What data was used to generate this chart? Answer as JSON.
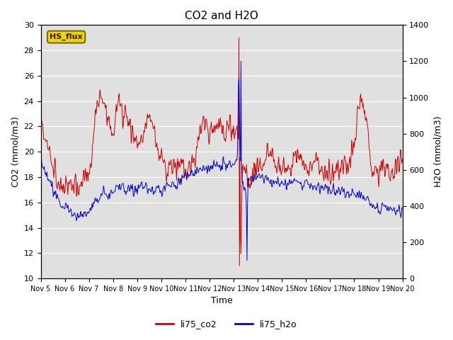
{
  "title": "CO2 and H2O",
  "xlabel": "Time",
  "ylabel_left": "CO2 (mmol/m3)",
  "ylabel_right": "H2O (mmol/m3)",
  "x_tick_labels": [
    "Nov 5",
    "Nov 6",
    "Nov 7",
    "Nov 8",
    "Nov 9",
    "Nov 10",
    "Nov 11",
    "Nov 12",
    "Nov 13",
    "Nov 14",
    "Nov 15",
    "Nov 16",
    "Nov 17",
    "Nov 18",
    "Nov 19",
    "Nov 20"
  ],
  "ylim_left": [
    10,
    30
  ],
  "ylim_right": [
    0,
    1400
  ],
  "yticks_left": [
    10,
    12,
    14,
    16,
    18,
    20,
    22,
    24,
    26,
    28,
    30
  ],
  "yticks_right": [
    0,
    200,
    400,
    600,
    800,
    1000,
    1200,
    1400
  ],
  "co2_color": "#cc0000",
  "h2o_color": "#0000cc",
  "background_color": "#e0e0e0",
  "legend_label_co2": "li75_co2",
  "legend_label_h2o": "li75_h2o",
  "annotation_text": "HS_flux",
  "annotation_bg": "#dddd00",
  "annotation_border": "#886600",
  "linewidth": 0.7,
  "co2_waypoints_t": [
    0,
    0.05,
    0.15,
    0.25,
    0.4,
    0.6,
    0.8,
    1.0,
    1.1,
    1.2,
    1.4,
    1.6,
    1.8,
    2.0,
    2.1,
    2.2,
    2.35,
    2.5,
    2.65,
    2.8,
    3.0,
    3.1,
    3.2,
    3.35,
    3.5,
    3.65,
    3.8,
    4.0,
    4.2,
    4.4,
    4.6,
    4.8,
    5.0,
    5.2,
    5.4,
    5.6,
    5.8,
    6.0,
    6.2,
    6.4,
    6.6,
    6.8,
    7.0,
    7.2,
    7.4,
    7.6,
    7.8,
    8.0,
    8.1,
    8.15,
    8.18,
    8.22,
    8.28,
    8.35,
    8.45,
    8.6,
    8.8,
    9.0,
    9.2,
    9.4,
    9.6,
    9.8,
    10.0,
    10.2,
    10.4,
    10.6,
    10.8,
    11.0,
    11.2,
    11.4,
    11.6,
    11.8,
    12.0,
    12.2,
    12.4,
    12.6,
    12.8,
    13.0,
    13.15,
    13.3,
    13.5,
    13.7,
    13.9,
    14.1,
    14.3,
    14.5,
    14.7,
    14.9,
    15.0
  ],
  "co2_waypoints_v": [
    22.2,
    22.5,
    21.5,
    20.5,
    19.5,
    18.5,
    17.2,
    17.0,
    17.0,
    17.5,
    17.5,
    17.0,
    18.0,
    18.5,
    19.5,
    21.5,
    23.5,
    24.3,
    23.8,
    22.5,
    21.5,
    23.0,
    24.0,
    23.5,
    23.0,
    22.5,
    21.5,
    20.5,
    21.0,
    22.5,
    22.5,
    20.5,
    19.5,
    18.5,
    19.0,
    18.5,
    19.5,
    18.0,
    19.0,
    19.5,
    22.0,
    22.5,
    21.5,
    22.0,
    22.0,
    21.5,
    22.0,
    21.5,
    22.0,
    22.5,
    21.5,
    29.0,
    11.0,
    18.5,
    18.5,
    17.5,
    18.5,
    18.5,
    19.0,
    20.0,
    19.5,
    19.0,
    18.5,
    18.5,
    19.0,
    20.0,
    19.5,
    19.0,
    18.5,
    19.5,
    18.5,
    18.5,
    18.0,
    18.5,
    18.5,
    19.5,
    19.0,
    20.5,
    23.5,
    24.0,
    22.5,
    18.5,
    18.5,
    18.5,
    19.0,
    18.5,
    18.5,
    19.5,
    19.0
  ],
  "h2o_waypoints_t": [
    0,
    0.1,
    0.2,
    0.35,
    0.5,
    0.7,
    0.9,
    1.1,
    1.3,
    1.5,
    1.8,
    2.0,
    2.2,
    2.4,
    2.6,
    2.8,
    3.0,
    3.2,
    3.4,
    3.6,
    3.8,
    4.0,
    4.2,
    4.4,
    4.6,
    4.8,
    5.0,
    5.2,
    5.4,
    5.6,
    5.8,
    6.0,
    6.2,
    6.4,
    6.6,
    6.8,
    7.0,
    7.2,
    7.4,
    7.6,
    7.8,
    8.0,
    8.1,
    8.15,
    8.2,
    8.25,
    8.3,
    8.4,
    8.5,
    8.6,
    8.8,
    9.0,
    9.2,
    9.4,
    9.6,
    9.8,
    10.0,
    10.2,
    10.4,
    10.6,
    10.8,
    11.0,
    11.2,
    11.4,
    11.6,
    11.8,
    12.0,
    12.2,
    12.4,
    12.6,
    12.8,
    13.0,
    13.2,
    13.4,
    13.6,
    13.8,
    14.0,
    14.2,
    14.4,
    14.6,
    14.8,
    15.0
  ],
  "h2o_waypoints_v": [
    650,
    620,
    580,
    540,
    490,
    440,
    400,
    380,
    360,
    340,
    360,
    380,
    420,
    440,
    470,
    460,
    480,
    510,
    520,
    490,
    490,
    500,
    510,
    500,
    490,
    490,
    490,
    510,
    510,
    520,
    540,
    560,
    580,
    590,
    600,
    610,
    610,
    620,
    620,
    630,
    620,
    630,
    640,
    650,
    1200,
    700,
    620,
    500,
    480,
    530,
    560,
    560,
    550,
    540,
    530,
    520,
    540,
    530,
    540,
    530,
    520,
    530,
    510,
    500,
    510,
    500,
    490,
    480,
    490,
    480,
    470,
    460,
    460,
    450,
    430,
    380,
    370,
    400,
    390,
    380,
    370,
    370
  ]
}
